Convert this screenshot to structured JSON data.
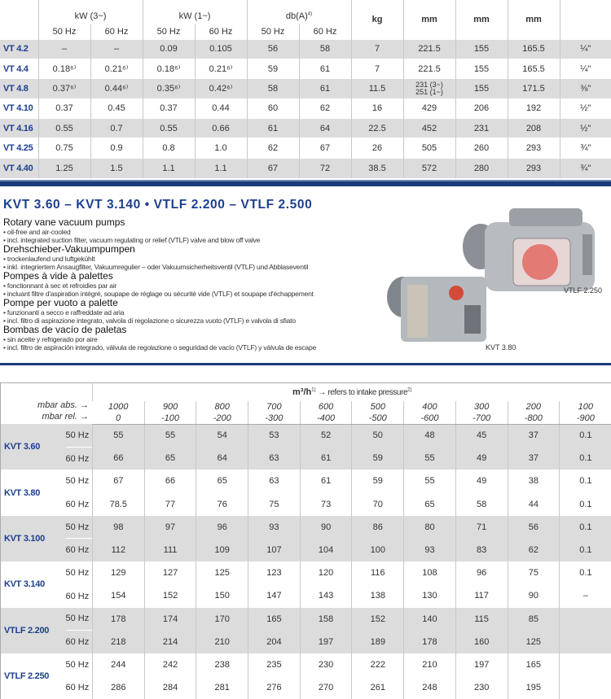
{
  "top_table": {
    "headers": {
      "kw3": "kW (3~)",
      "kw1": "kW (1~)",
      "db": "db(A)",
      "db_note": "4)",
      "kg": "kg",
      "mm1": "mm",
      "mm2": "mm",
      "mm3": "mm",
      "hz50": "50 Hz",
      "hz60": "60 Hz"
    },
    "rows": [
      {
        "model": "VT 4.2",
        "v": [
          "–",
          "–",
          "0.09",
          "0.105",
          "56",
          "58",
          "7",
          "221.5",
          "155",
          "165.5",
          "¼\""
        ]
      },
      {
        "model": "VT 4.4",
        "v": [
          "0.18⁶⁾",
          "0.21⁶⁾",
          "0.18⁶⁾",
          "0.21⁶⁾",
          "59",
          "61",
          "7",
          "221.5",
          "155",
          "165.5",
          "¼\""
        ]
      },
      {
        "model": "VT 4.8",
        "v": [
          "0.37⁶⁾",
          "0.44⁶⁾",
          "0.35⁶⁾",
          "0.42⁶⁾",
          "58",
          "61",
          "11.5",
          "231 (3~)\n251 (1~)",
          "155",
          "171.5",
          "⅜\""
        ]
      },
      {
        "model": "VT 4.10",
        "v": [
          "0.37",
          "0.45",
          "0.37",
          "0.44",
          "60",
          "62",
          "16",
          "429",
          "206",
          "192",
          "½\""
        ]
      },
      {
        "model": "VT 4.16",
        "v": [
          "0.55",
          "0.7",
          "0.55",
          "0.66",
          "61",
          "64",
          "22.5",
          "452",
          "231",
          "208",
          "½\""
        ]
      },
      {
        "model": "VT 4.25",
        "v": [
          "0.75",
          "0.9",
          "0.8",
          "1.0",
          "62",
          "67",
          "26",
          "505",
          "260",
          "293",
          "¾\""
        ]
      },
      {
        "model": "VT 4.40",
        "v": [
          "1.25",
          "1.5",
          "1.1",
          "1.1",
          "67",
          "72",
          "38.5",
          "572",
          "280",
          "293",
          "¾\""
        ]
      }
    ]
  },
  "section": {
    "title": "KVT 3.60 – KVT 3.140  •  VTLF 2.200 – VTLF 2.500",
    "blocks": [
      {
        "heading": "Rotary vane vacuum pumps",
        "lines": [
          "• oil-free and air-cooled",
          "• incl. integrated suction filter, vacuum regulating or relief (VTLF) valve and blow off valve"
        ]
      },
      {
        "heading": "Drehschieber-Vakuumpumpen",
        "lines": [
          "• trockenlaufend und luftgekühlt",
          "• inkl. integriertem Ansaugfilter, Vakuumregulier – oder Vakuumsicherheitsventil (VTLF) und Abblaseventil"
        ]
      },
      {
        "heading": "Pompes à vide à palettes",
        "lines": [
          "• fonctionnant à sec et refroidies par air",
          "• incluant filtre d'aspiration intégré, soupape de réglage ou sécurité vide (VTLF) et soupape d'échappement"
        ]
      },
      {
        "heading": "Pompe per vuoto a palette",
        "lines": [
          "• funzionanti a secco e raffreddate ad aria",
          "• incl. filtro di aspirazione integrato, valvola di regolazione o sicurezza vuoto (VTLF) e valvola di sfiato"
        ]
      },
      {
        "heading": "Bombas de vacío de paletas",
        "lines": [
          "• sin aceite y refrigerado por aire",
          "• incl. filtro de aspiración integrado, válvula de regolazione o seguridad de vacío (VTLF) y válvula de escape"
        ]
      }
    ],
    "captions": {
      "vtlf": "VTLF 2.250",
      "kvt": "KVT 3.80"
    }
  },
  "bottom_table": {
    "unit": "m³/h",
    "unit_note": "1)",
    "refers": "→ refers to intake pressure",
    "refers_note": "2)",
    "abs_label": "mbar abs. →",
    "rel_label": "mbar rel. →",
    "abs": [
      "1000",
      "900",
      "800",
      "700",
      "600",
      "500",
      "400",
      "300",
      "200",
      "100"
    ],
    "rel": [
      "0",
      "-100",
      "-200",
      "-300",
      "-400",
      "-500",
      "-600",
      "-700",
      "-800",
      "-900"
    ],
    "hz50": "50 Hz",
    "hz60": "60 Hz",
    "rows": [
      {
        "model": "KVT 3.60",
        "r50": [
          "55",
          "55",
          "54",
          "53",
          "52",
          "50",
          "48",
          "45",
          "37",
          "0.1"
        ],
        "r60": [
          "66",
          "65",
          "64",
          "63",
          "61",
          "59",
          "55",
          "49",
          "37",
          "0.1"
        ]
      },
      {
        "model": "KVT 3.80",
        "r50": [
          "67",
          "66",
          "65",
          "63",
          "61",
          "59",
          "55",
          "49",
          "38",
          "0.1"
        ],
        "r60": [
          "78.5",
          "77",
          "76",
          "75",
          "73",
          "70",
          "65",
          "58",
          "44",
          "0.1"
        ]
      },
      {
        "model": "KVT 3.100",
        "r50": [
          "98",
          "97",
          "96",
          "93",
          "90",
          "86",
          "80",
          "71",
          "56",
          "0.1"
        ],
        "r60": [
          "112",
          "111",
          "109",
          "107",
          "104",
          "100",
          "93",
          "83",
          "62",
          "0.1"
        ]
      },
      {
        "model": "KVT 3.140",
        "r50": [
          "129",
          "127",
          "125",
          "123",
          "120",
          "116",
          "108",
          "96",
          "75",
          "0.1"
        ],
        "r60": [
          "154",
          "152",
          "150",
          "147",
          "143",
          "138",
          "130",
          "117",
          "90",
          "–"
        ]
      },
      {
        "model": "VTLF 2.200",
        "r50": [
          "178",
          "174",
          "170",
          "165",
          "158",
          "152",
          "140",
          "115",
          "85",
          ""
        ],
        "r60": [
          "218",
          "214",
          "210",
          "204",
          "197",
          "189",
          "178",
          "160",
          "125",
          ""
        ]
      },
      {
        "model": "VTLF 2.250",
        "r50": [
          "244",
          "242",
          "238",
          "235",
          "230",
          "222",
          "210",
          "197",
          "165",
          ""
        ],
        "r60": [
          "286",
          "284",
          "281",
          "276",
          "270",
          "261",
          "248",
          "230",
          "195",
          ""
        ]
      }
    ]
  },
  "colors": {
    "brand_blue": "#1d3f8f",
    "row_gray": "#dcdcdc"
  }
}
